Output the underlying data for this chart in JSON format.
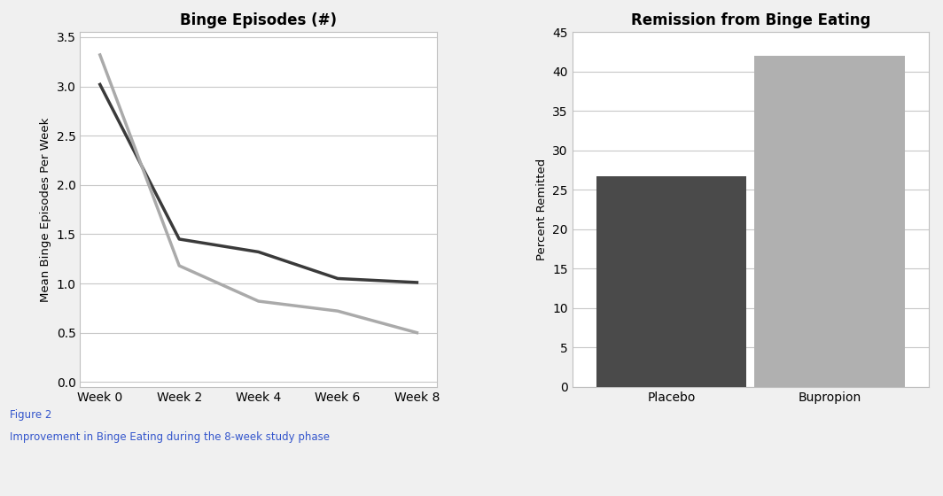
{
  "line_chart": {
    "title": "Binge Episodes (#)",
    "xlabel": "",
    "ylabel": "Mean Binge Episodes Per Week",
    "weeks": [
      "Week 0",
      "Week 2",
      "Week 4",
      "Week 6",
      "Week 8"
    ],
    "placebo_line": [
      3.02,
      1.45,
      1.32,
      1.05,
      1.01
    ],
    "bupropion_line": [
      3.32,
      1.18,
      0.82,
      0.72,
      0.5
    ],
    "placebo_color": "#3a3a3a",
    "bupropion_color": "#aaaaaa",
    "ylim": [
      0.0,
      3.5
    ],
    "yticks": [
      0.0,
      0.5,
      1.0,
      1.5,
      2.0,
      2.5,
      3.0,
      3.5
    ],
    "line_width": 2.5,
    "bg_color": "#ffffff",
    "grid_color": "#c8c8c8"
  },
  "bar_chart": {
    "title": "Remission from Binge Eating",
    "ylabel": "Percent Remitted",
    "categories": [
      "Placebo",
      "Bupropion"
    ],
    "values": [
      26.7,
      42.0
    ],
    "bar_colors": [
      "#4a4a4a",
      "#b0b0b0"
    ],
    "ylim": [
      0,
      45
    ],
    "yticks": [
      0,
      5,
      10,
      15,
      20,
      25,
      30,
      35,
      40,
      45
    ],
    "bg_color": "#ffffff",
    "grid_color": "#c8c8c8"
  },
  "figure_caption_line1": "Figure 2",
  "figure_caption_line2": "Improvement in Binge Eating during the 8-week study phase",
  "caption_color": "#3355cc",
  "bg_color": "#f0f0f0",
  "panel_border_color": "#c0c0c0"
}
